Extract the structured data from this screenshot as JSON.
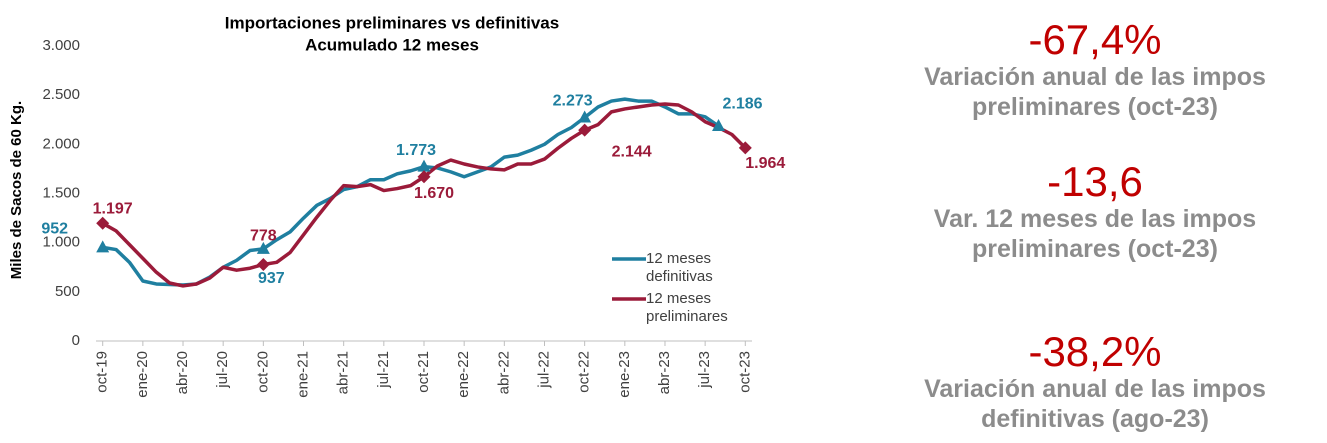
{
  "chart_data": {
    "type": "line",
    "title": "Importaciones preliminares vs definitivas",
    "subtitle": "Acumulado 12 meses",
    "y_label": "Miles de Sacos de 60 Kg.",
    "categories": [
      "oct-19",
      null,
      null,
      "ene-20",
      null,
      null,
      "abr-20",
      null,
      null,
      "jul-20",
      null,
      null,
      "oct-20",
      null,
      null,
      "ene-21",
      null,
      null,
      "abr-21",
      null,
      null,
      "jul-21",
      null,
      null,
      "oct-21",
      null,
      null,
      "ene-22",
      null,
      null,
      "abr-22",
      null,
      null,
      "jul-22",
      null,
      null,
      "oct-22",
      null,
      null,
      "ene-23",
      null,
      null,
      "abr-23",
      null,
      null,
      "jul-23",
      null,
      null,
      "oct-23"
    ],
    "series": [
      {
        "name": "12 meses definitivas",
        "color": "#1f7fa0",
        "marker": "triangle",
        "values": [
          952,
          930,
          800,
          610,
          580,
          575,
          570,
          580,
          650,
          750,
          820,
          920,
          937,
          1030,
          1110,
          1250,
          1380,
          1450,
          1540,
          1570,
          1640,
          1640,
          1700,
          1730,
          1773,
          1760,
          1720,
          1670,
          1720,
          1770,
          1870,
          1890,
          1940,
          2000,
          2100,
          2170,
          2273,
          2380,
          2440,
          2460,
          2440,
          2440,
          2380,
          2310,
          2310,
          2280,
          2186,
          null,
          null
        ],
        "value_labels": [
          "952",
          null,
          null,
          null,
          null,
          null,
          null,
          null,
          null,
          null,
          null,
          null,
          "937",
          null,
          null,
          null,
          null,
          null,
          null,
          null,
          null,
          null,
          null,
          null,
          "1.773",
          null,
          null,
          null,
          null,
          null,
          null,
          null,
          null,
          null,
          null,
          null,
          "2.273",
          null,
          null,
          null,
          null,
          null,
          null,
          null,
          null,
          null,
          "2.186",
          null,
          null
        ]
      },
      {
        "name": "12 meses preliminares",
        "color": "#9b1b3a",
        "marker": "diamond",
        "values": [
          1197,
          1120,
          980,
          840,
          700,
          590,
          560,
          580,
          640,
          750,
          720,
          740,
          778,
          800,
          900,
          1080,
          1260,
          1430,
          1580,
          1570,
          1590,
          1530,
          1550,
          1580,
          1670,
          1780,
          1840,
          1800,
          1770,
          1750,
          1740,
          1800,
          1800,
          1850,
          1960,
          2060,
          2144,
          2200,
          2330,
          2360,
          2380,
          2400,
          2410,
          2400,
          2330,
          2230,
          2170,
          2100,
          1964
        ],
        "value_labels": [
          "1.197",
          null,
          null,
          null,
          null,
          null,
          null,
          null,
          null,
          null,
          null,
          null,
          "778",
          null,
          null,
          null,
          null,
          null,
          null,
          null,
          null,
          null,
          null,
          null,
          "1.670",
          null,
          null,
          null,
          null,
          null,
          null,
          null,
          null,
          null,
          null,
          null,
          "2.144",
          null,
          null,
          null,
          null,
          null,
          null,
          null,
          null,
          null,
          null,
          null,
          "1.964"
        ]
      }
    ],
    "ylim": [
      0,
      3000
    ],
    "yticks": [
      0,
      500,
      {
        "value": 1000,
        "label": "1.000"
      },
      {
        "value": 1500,
        "label": "1.500"
      },
      {
        "value": 2000,
        "label": "2.000"
      },
      {
        "value": 2500,
        "label": "2.500"
      },
      {
        "value": 3000,
        "label": "3.000"
      }
    ],
    "grid": false,
    "legend": "right"
  },
  "kpis": [
    {
      "value": "-67,4%",
      "description": "Variación anual de las impos preliminares (oct-23)"
    },
    {
      "value": "-13,6",
      "description": "Var. 12 meses de las impos preliminares (oct-23)"
    },
    {
      "value": "-38,2%",
      "description": "Variación anual de las impos definitivas (ago-23)"
    }
  ]
}
